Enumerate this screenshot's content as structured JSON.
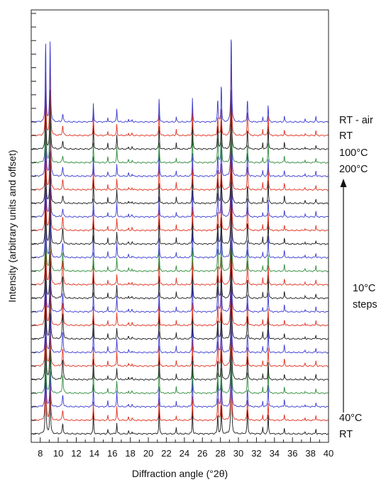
{
  "chart_data": {
    "type": "line",
    "xlabel": "Diffraction angle (°2θ)",
    "ylabel": "Intensity (arbitrary units and offset)",
    "xlim": [
      7,
      40
    ],
    "x_ticks": [
      8,
      10,
      12,
      14,
      16,
      18,
      20,
      22,
      24,
      26,
      28,
      30,
      32,
      34,
      36,
      38,
      40
    ],
    "grid": false,
    "legend": "none",
    "series_colors_cycle": [
      "#1a1a1a",
      "#e0301e",
      "#3a3ad0",
      "#2e8b3a"
    ],
    "peak_positions_2theta": [
      8.6,
      9.1,
      10.5,
      13.9,
      15.5,
      16.5,
      17.8,
      18.2,
      21.2,
      23.1,
      24.9,
      27.7,
      28.1,
      29.2,
      31.0,
      32.7,
      33.3,
      35.1,
      37.4,
      38.6
    ],
    "patterns": [
      {
        "order": 1,
        "color": "black"
      },
      {
        "order": 2,
        "color": "red"
      },
      {
        "order": 3,
        "color": "blue"
      },
      {
        "order": 4,
        "color": "green"
      },
      {
        "order": 5,
        "color": "black"
      },
      {
        "order": 6,
        "color": "red"
      },
      {
        "order": 7,
        "color": "blue"
      },
      {
        "order": 8,
        "color": "black"
      },
      {
        "order": 9,
        "color": "red"
      },
      {
        "order": 10,
        "color": "blue"
      },
      {
        "order": 11,
        "color": "black"
      },
      {
        "order": 12,
        "color": "red"
      },
      {
        "order": 13,
        "color": "green"
      },
      {
        "order": 14,
        "color": "blue"
      },
      {
        "order": 15,
        "color": "black"
      },
      {
        "order": 16,
        "color": "red"
      },
      {
        "order": 17,
        "color": "blue"
      },
      {
        "order": 18,
        "color": "black"
      },
      {
        "order": 19,
        "color": "red"
      },
      {
        "order": 20,
        "color": "blue"
      },
      {
        "order": 21,
        "color": "green"
      },
      {
        "order": 22,
        "color": "black"
      },
      {
        "order": 23,
        "color": "red"
      },
      {
        "order": 24,
        "color": "blue"
      }
    ],
    "annotations": [
      {
        "text": "RT - air"
      },
      {
        "text": "RT"
      },
      {
        "text": "100°C"
      },
      {
        "text": "200°C"
      },
      {
        "text": "10°C"
      },
      {
        "text": "steps"
      },
      {
        "text": "40°C"
      },
      {
        "text": "RT"
      }
    ],
    "arrow": {
      "direction": "up"
    }
  }
}
